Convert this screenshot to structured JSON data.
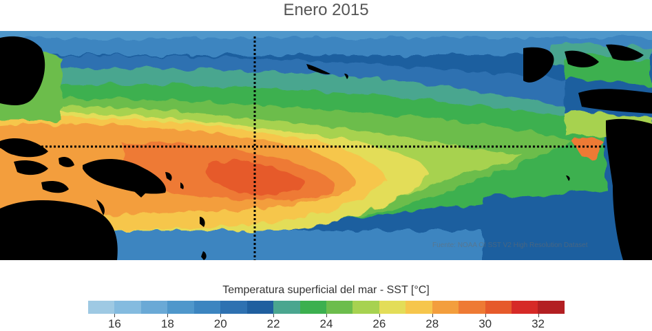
{
  "title": "Enero 2015",
  "source_credit": "Fuente: NOAA OI SST V2 High Resolution Dataset",
  "colorbar": {
    "title": "Temperatura superficial del mar - SST  [°C]",
    "colors": [
      "#9ec9e3",
      "#84bbdf",
      "#6aa9d6",
      "#4f97cb",
      "#3c85c0",
      "#2e71b1",
      "#1f5f9f",
      "#4aa68f",
      "#3cb04f",
      "#6cbd4c",
      "#a7d250",
      "#e3dd58",
      "#f6c64c",
      "#f39e3d",
      "#ee7a34",
      "#e65a2b",
      "#d62a27",
      "#b31f22"
    ],
    "min": 15,
    "max": 33,
    "ticks": [
      16,
      18,
      20,
      22,
      24,
      26,
      28,
      30,
      32
    ],
    "tick_labels": [
      "16",
      "18",
      "20",
      "22",
      "24",
      "26",
      "28",
      "30",
      "32"
    ]
  },
  "map": {
    "reference_lines": "dotted equator and dotted 180° meridian",
    "land_color": "#000000"
  }
}
